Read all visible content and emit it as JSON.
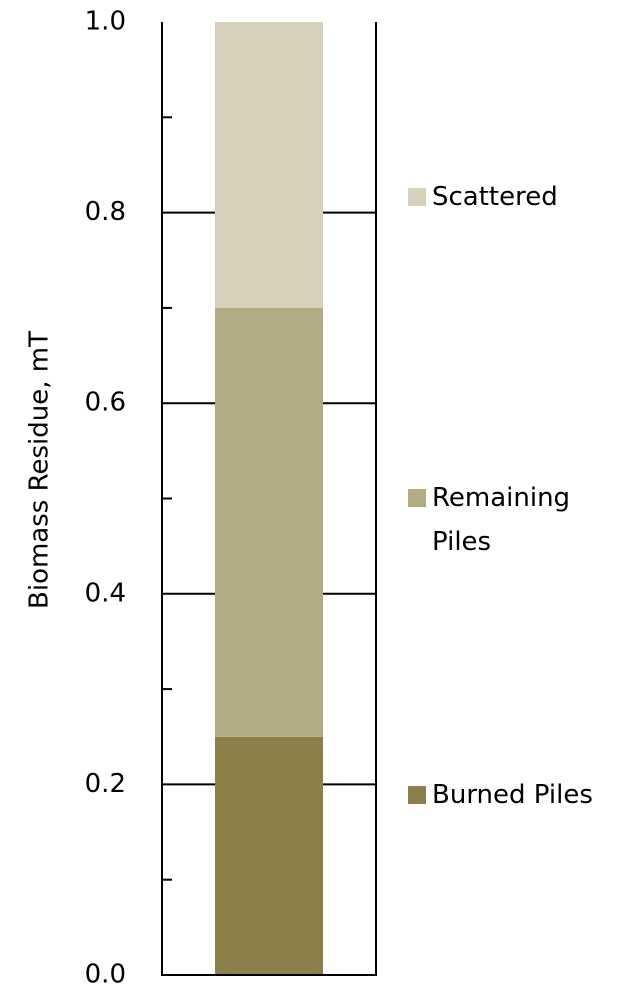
{
  "chart_data": {
    "type": "stacked-bar",
    "y_label": "Biomass Residue, mT",
    "categories": [
      null
    ],
    "series": [
      {
        "name": "Burned Piles",
        "color": "#8b7f4a",
        "values": [
          0.25
        ]
      },
      {
        "name": "Remaining Piles",
        "color": "#b3ab84",
        "values": [
          0.45
        ]
      },
      {
        "name": "Scattered",
        "color": "#d6cfb9",
        "values": [
          0.3
        ]
      }
    ],
    "ylim": [
      0,
      1
    ],
    "yticks": [
      {
        "value": 0,
        "label": "0.0"
      },
      0.2,
      0.4,
      0.6,
      0.8,
      {
        "value": 1,
        "label": "1.0"
      }
    ],
    "minor_yticks": [
      0.1,
      0.3,
      0.5,
      0.7,
      0.9
    ],
    "grid": true,
    "legend": "right"
  }
}
